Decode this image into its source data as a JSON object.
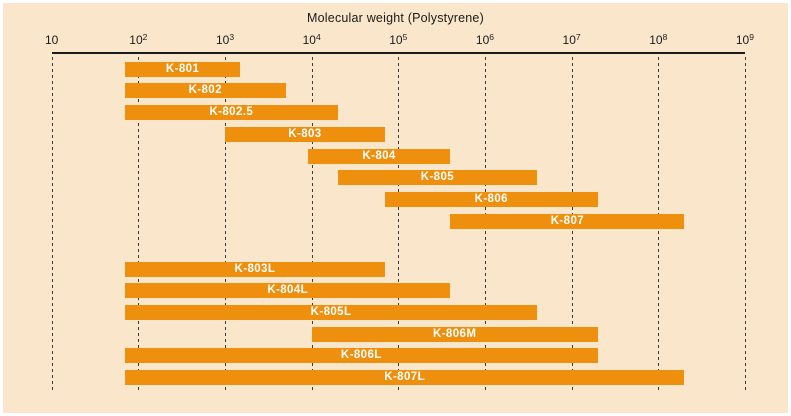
{
  "chart_data": {
    "type": "bar",
    "subtype": "horizontal-range-bars",
    "title": "Molecular weight (Polystyrene)",
    "x_axis": {
      "label": "Molecular weight (Polystyrene)",
      "scale": "log10",
      "min": 10,
      "max": 1000000000,
      "gridlines": "dashed-vertical",
      "ticks": [
        {
          "value": 10,
          "label_base": "10",
          "label_exp": ""
        },
        {
          "value": 100,
          "label_base": "10",
          "label_exp": "2"
        },
        {
          "value": 1000,
          "label_base": "10",
          "label_exp": "3"
        },
        {
          "value": 10000,
          "label_base": "10",
          "label_exp": "4"
        },
        {
          "value": 100000,
          "label_base": "10",
          "label_exp": "5"
        },
        {
          "value": 1000000,
          "label_base": "10",
          "label_exp": "6"
        },
        {
          "value": 10000000,
          "label_base": "10",
          "label_exp": "7"
        },
        {
          "value": 100000000,
          "label_base": "10",
          "label_exp": "8"
        },
        {
          "value": 1000000000,
          "label_base": "10",
          "label_exp": "9"
        }
      ]
    },
    "series": [
      {
        "name": "K-801",
        "mw_min": 70,
        "mw_max": 1500,
        "group": 1
      },
      {
        "name": "K-802",
        "mw_min": 70,
        "mw_max": 5000,
        "group": 1
      },
      {
        "name": "K-802.5",
        "mw_min": 70,
        "mw_max": 20000,
        "group": 1
      },
      {
        "name": "K-803",
        "mw_min": 1000,
        "mw_max": 70000,
        "group": 1
      },
      {
        "name": "K-804",
        "mw_min": 9000,
        "mw_max": 400000,
        "group": 1
      },
      {
        "name": "K-805",
        "mw_min": 20000,
        "mw_max": 4000000,
        "group": 1
      },
      {
        "name": "K-806",
        "mw_min": 70000,
        "mw_max": 20000000,
        "group": 1
      },
      {
        "name": "K-807",
        "mw_min": 400000,
        "mw_max": 200000000,
        "group": 1
      },
      {
        "name": "K-803L",
        "mw_min": 70,
        "mw_max": 70000,
        "group": 2
      },
      {
        "name": "K-804L",
        "mw_min": 70,
        "mw_max": 400000,
        "group": 2
      },
      {
        "name": "K-805L",
        "mw_min": 70,
        "mw_max": 4000000,
        "group": 2
      },
      {
        "name": "K-806M",
        "mw_min": 10000,
        "mw_max": 20000000,
        "group": 2
      },
      {
        "name": "K-806L",
        "mw_min": 70,
        "mw_max": 20000000,
        "group": 2
      },
      {
        "name": "K-807L",
        "mw_min": 70,
        "mw_max": 200000000,
        "group": 2
      }
    ],
    "colors": {
      "bar": "#EE8F0D",
      "bar_label": "#FFFFFF",
      "background": "#FAE7CB",
      "frame": "#FFFFFF",
      "axis": "#1A1A1A",
      "gridline": "#3C3C3C",
      "text": "#1A1A1A"
    }
  }
}
